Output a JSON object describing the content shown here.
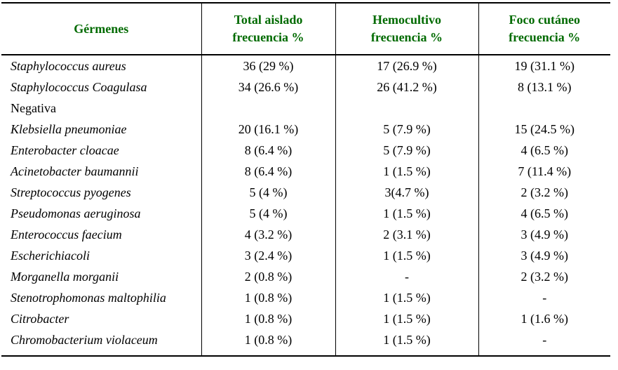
{
  "colors": {
    "header_text": "#006a00",
    "body_text": "#000000",
    "border": "#000000",
    "background": "#ffffff"
  },
  "table": {
    "header": {
      "germ_column": "Gérmenes",
      "columns": [
        {
          "line1": "Total aislado",
          "line2": "frecuencia %"
        },
        {
          "line1": "Hemocultivo",
          "line2": "frecuencia %"
        },
        {
          "line1": "Foco cutáneo",
          "line2": "frecuencia %"
        }
      ]
    },
    "rows": [
      {
        "name": "Staphylococcus aureus",
        "total": "36 (29 %)",
        "hemocultivo": "17 (26.9 %)",
        "foco": "19 (31.1 %)"
      },
      {
        "name": "Staphylococcus Coagulasa",
        "name2": "Negativa",
        "total": "34 (26.6 %)",
        "hemocultivo": "26 (41.2 %)",
        "foco": "8 (13.1 %)"
      },
      {
        "name": "Klebsiella pneumoniae",
        "total": "20 (16.1 %)",
        "hemocultivo": "5 (7.9 %)",
        "foco": "15 (24.5 %)"
      },
      {
        "name": "Enterobacter cloacae",
        "total": "8 (6.4 %)",
        "hemocultivo": "5 (7.9 %)",
        "foco": "4 (6.5 %)"
      },
      {
        "name": "Acinetobacter baumannii",
        "total": "8 (6.4 %)",
        "hemocultivo": "1 (1.5 %)",
        "foco": "7 (11.4 %)"
      },
      {
        "name": "Streptococcus pyogenes",
        "total": "5 (4 %)",
        "hemocultivo": "3(4.7 %)",
        "foco": "2 (3.2 %)"
      },
      {
        "name": "Pseudomonas aeruginosa",
        "total": "5 (4 %)",
        "hemocultivo": "1 (1.5 %)",
        "foco": "4 (6.5 %)"
      },
      {
        "name": "Enterococcus faecium",
        "total": "4 (3.2 %)",
        "hemocultivo": "2 (3.1 %)",
        "foco": "3 (4.9 %)"
      },
      {
        "name": "Escherichiacoli",
        "total": "3 (2.4 %)",
        "hemocultivo": "1 (1.5 %)",
        "foco": "3 (4.9 %)"
      },
      {
        "name": "Morganella morganii",
        "total": "2 (0.8 %)",
        "hemocultivo": "-",
        "foco": "2 (3.2 %)"
      },
      {
        "name": "Stenotrophomonas maltophilia",
        "total": "1 (0.8 %)",
        "hemocultivo": "1 (1.5 %)",
        "foco": "-"
      },
      {
        "name": "Citrobacter",
        "total": "1 (0.8 %)",
        "hemocultivo": "1 (1.5 %)",
        "foco": "1 (1.6 %)"
      },
      {
        "name": "Chromobacterium violaceum",
        "total": "1 (0.8 %)",
        "hemocultivo": "1 (1.5 %)",
        "foco": "-"
      }
    ]
  },
  "chart_data": {
    "type": "table",
    "title": "",
    "columns": [
      "Gérmenes",
      "Total aislado frecuencia %",
      "Hemocultivo frecuencia %",
      "Foco cutáneo frecuencia %"
    ],
    "rows": [
      [
        "Staphylococcus aureus",
        "36 (29 %)",
        "17 (26.9 %)",
        "19 (31.1 %)"
      ],
      [
        "Staphylococcus Coagulasa Negativa",
        "34 (26.6 %)",
        "26 (41.2 %)",
        "8 (13.1 %)"
      ],
      [
        "Klebsiella pneumoniae",
        "20 (16.1 %)",
        "5 (7.9 %)",
        "15 (24.5 %)"
      ],
      [
        "Enterobacter cloacae",
        "8 (6.4 %)",
        "5 (7.9 %)",
        "4 (6.5 %)"
      ],
      [
        "Acinetobacter baumannii",
        "8 (6.4 %)",
        "1 (1.5 %)",
        "7 (11.4 %)"
      ],
      [
        "Streptococcus pyogenes",
        "5 (4 %)",
        "3(4.7 %)",
        "2 (3.2 %)"
      ],
      [
        "Pseudomonas aeruginosa",
        "5 (4 %)",
        "1 (1.5 %)",
        "4 (6.5 %)"
      ],
      [
        "Enterococcus faecium",
        "4 (3.2 %)",
        "2 (3.1 %)",
        "3 (4.9 %)"
      ],
      [
        "Escherichiacoli",
        "3 (2.4 %)",
        "1 (1.5 %)",
        "3 (4.9 %)"
      ],
      [
        "Morganella morganii",
        "2 (0.8 %)",
        "-",
        "2 (3.2 %)"
      ],
      [
        "Stenotrophomonas maltophilia",
        "1 (0.8 %)",
        "1 (1.5 %)",
        "-"
      ],
      [
        "Citrobacter",
        "1 (0.8 %)",
        "1 (1.5 %)",
        "1 (1.6 %)"
      ],
      [
        "Chromobacterium violaceum",
        "1 (0.8 %)",
        "1 (1.5 %)",
        "-"
      ]
    ]
  }
}
